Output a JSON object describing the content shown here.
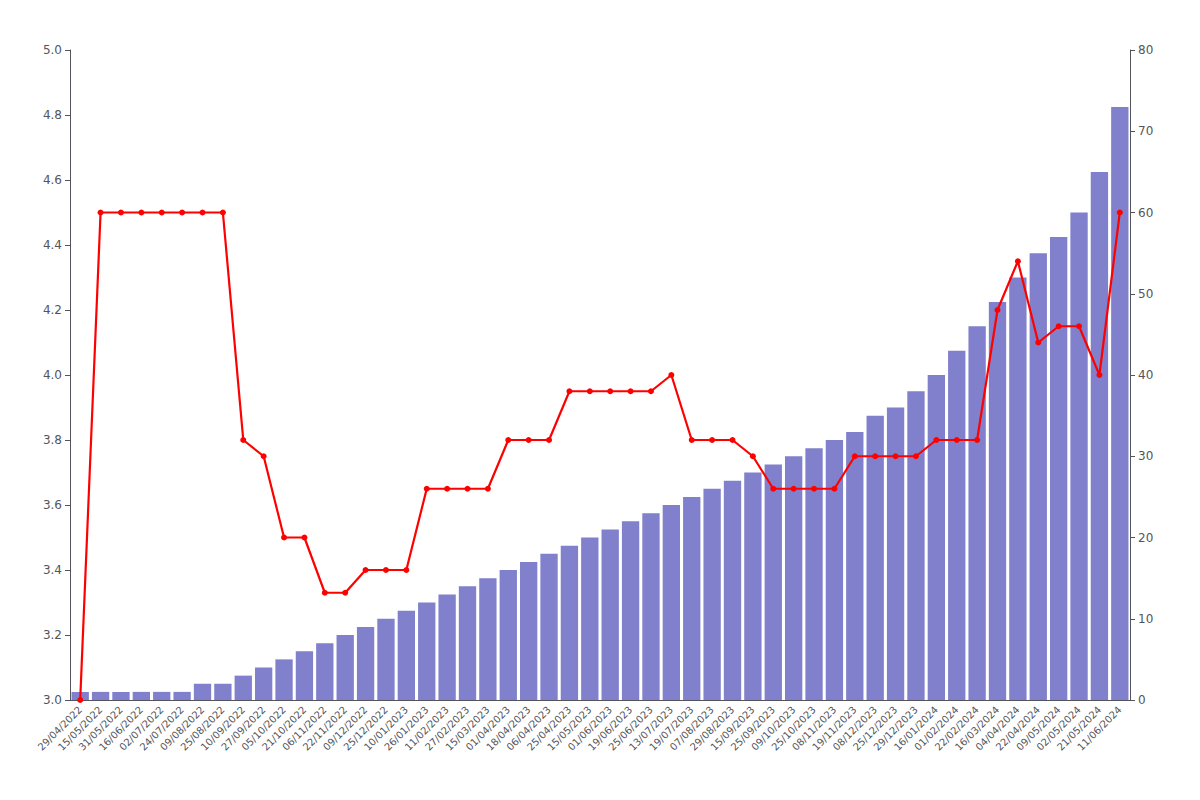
{
  "chart_data": {
    "type": "bar",
    "categories": [
      "29/04/2022",
      "15/05/2022",
      "31/05/2022",
      "16/06/2022",
      "02/07/2022",
      "24/07/2022",
      "09/08/2022",
      "25/08/2022",
      "10/09/2022",
      "27/09/2022",
      "05/10/2022",
      "21/10/2022",
      "06/11/2022",
      "22/11/2022",
      "09/12/2022",
      "25/12/2022",
      "10/01/2023",
      "26/01/2023",
      "11/02/2023",
      "27/02/2023",
      "15/03/2023",
      "01/04/2023",
      "18/04/2023",
      "06/04/2023",
      "25/04/2023",
      "15/05/2023",
      "01/06/2023",
      "19/06/2023",
      "25/06/2023",
      "13/07/2023",
      "19/07/2023",
      "07/08/2023",
      "29/08/2023",
      "15/09/2023",
      "25/09/2023",
      "09/10/2023",
      "25/10/2023",
      "08/11/2023",
      "19/11/2023",
      "08/12/2023",
      "25/12/2023",
      "29/12/2023",
      "16/01/2024",
      "01/02/2024",
      "22/02/2024",
      "16/03/2024",
      "04/04/2024",
      "22/04/2024",
      "09/05/2024",
      "02/05/2024",
      "21/05/2024",
      "11/06/2024"
    ],
    "series": [
      {
        "type": "bar",
        "axis": "y2",
        "color": "#8080cc",
        "values": [
          1,
          1,
          1,
          1,
          1,
          1,
          2,
          2,
          3,
          4,
          5,
          6,
          7,
          8,
          9,
          10,
          11,
          12,
          13,
          14,
          15,
          16,
          17,
          18,
          19,
          20,
          21,
          22,
          23,
          24,
          25,
          26,
          27,
          28,
          29,
          30,
          31,
          32,
          33,
          35,
          36,
          38,
          40,
          43,
          46,
          49,
          52,
          55,
          57,
          60,
          65,
          73
        ]
      },
      {
        "type": "line",
        "color": "#ff0000",
        "marker": "circle",
        "values": [
          3.0,
          4.5,
          4.5,
          4.5,
          4.5,
          4.5,
          4.5,
          4.5,
          3.8,
          3.75,
          3.5,
          3.5,
          3.33,
          3.33,
          3.4,
          3.4,
          3.4,
          3.65,
          3.65,
          3.65,
          3.65,
          3.8,
          3.8,
          3.8,
          3.95,
          3.95,
          3.95,
          3.95,
          3.95,
          4.0,
          3.8,
          3.8,
          3.8,
          3.75,
          3.65,
          3.65,
          3.65,
          3.65,
          3.75,
          3.75,
          3.75,
          3.75,
          3.8,
          3.8,
          3.8,
          4.2,
          4.35,
          4.1,
          4.15,
          4.15,
          4.0,
          4.5
        ]
      }
    ],
    "ylim": [
      3.0,
      5.0
    ],
    "yticks": [
      {
        "value": 3.0,
        "label": "3.0"
      },
      3.2,
      3.4,
      3.6,
      3.8,
      {
        "value": 4.0,
        "label": "4.0"
      },
      4.2,
      4.4,
      4.6,
      4.8,
      {
        "value": 5.0,
        "label": "5.0"
      }
    ],
    "y2lim": [
      0,
      80
    ],
    "y2ticks": [
      0,
      10,
      20,
      30,
      40,
      50,
      60,
      70,
      80
    ],
    "grid": false
  }
}
